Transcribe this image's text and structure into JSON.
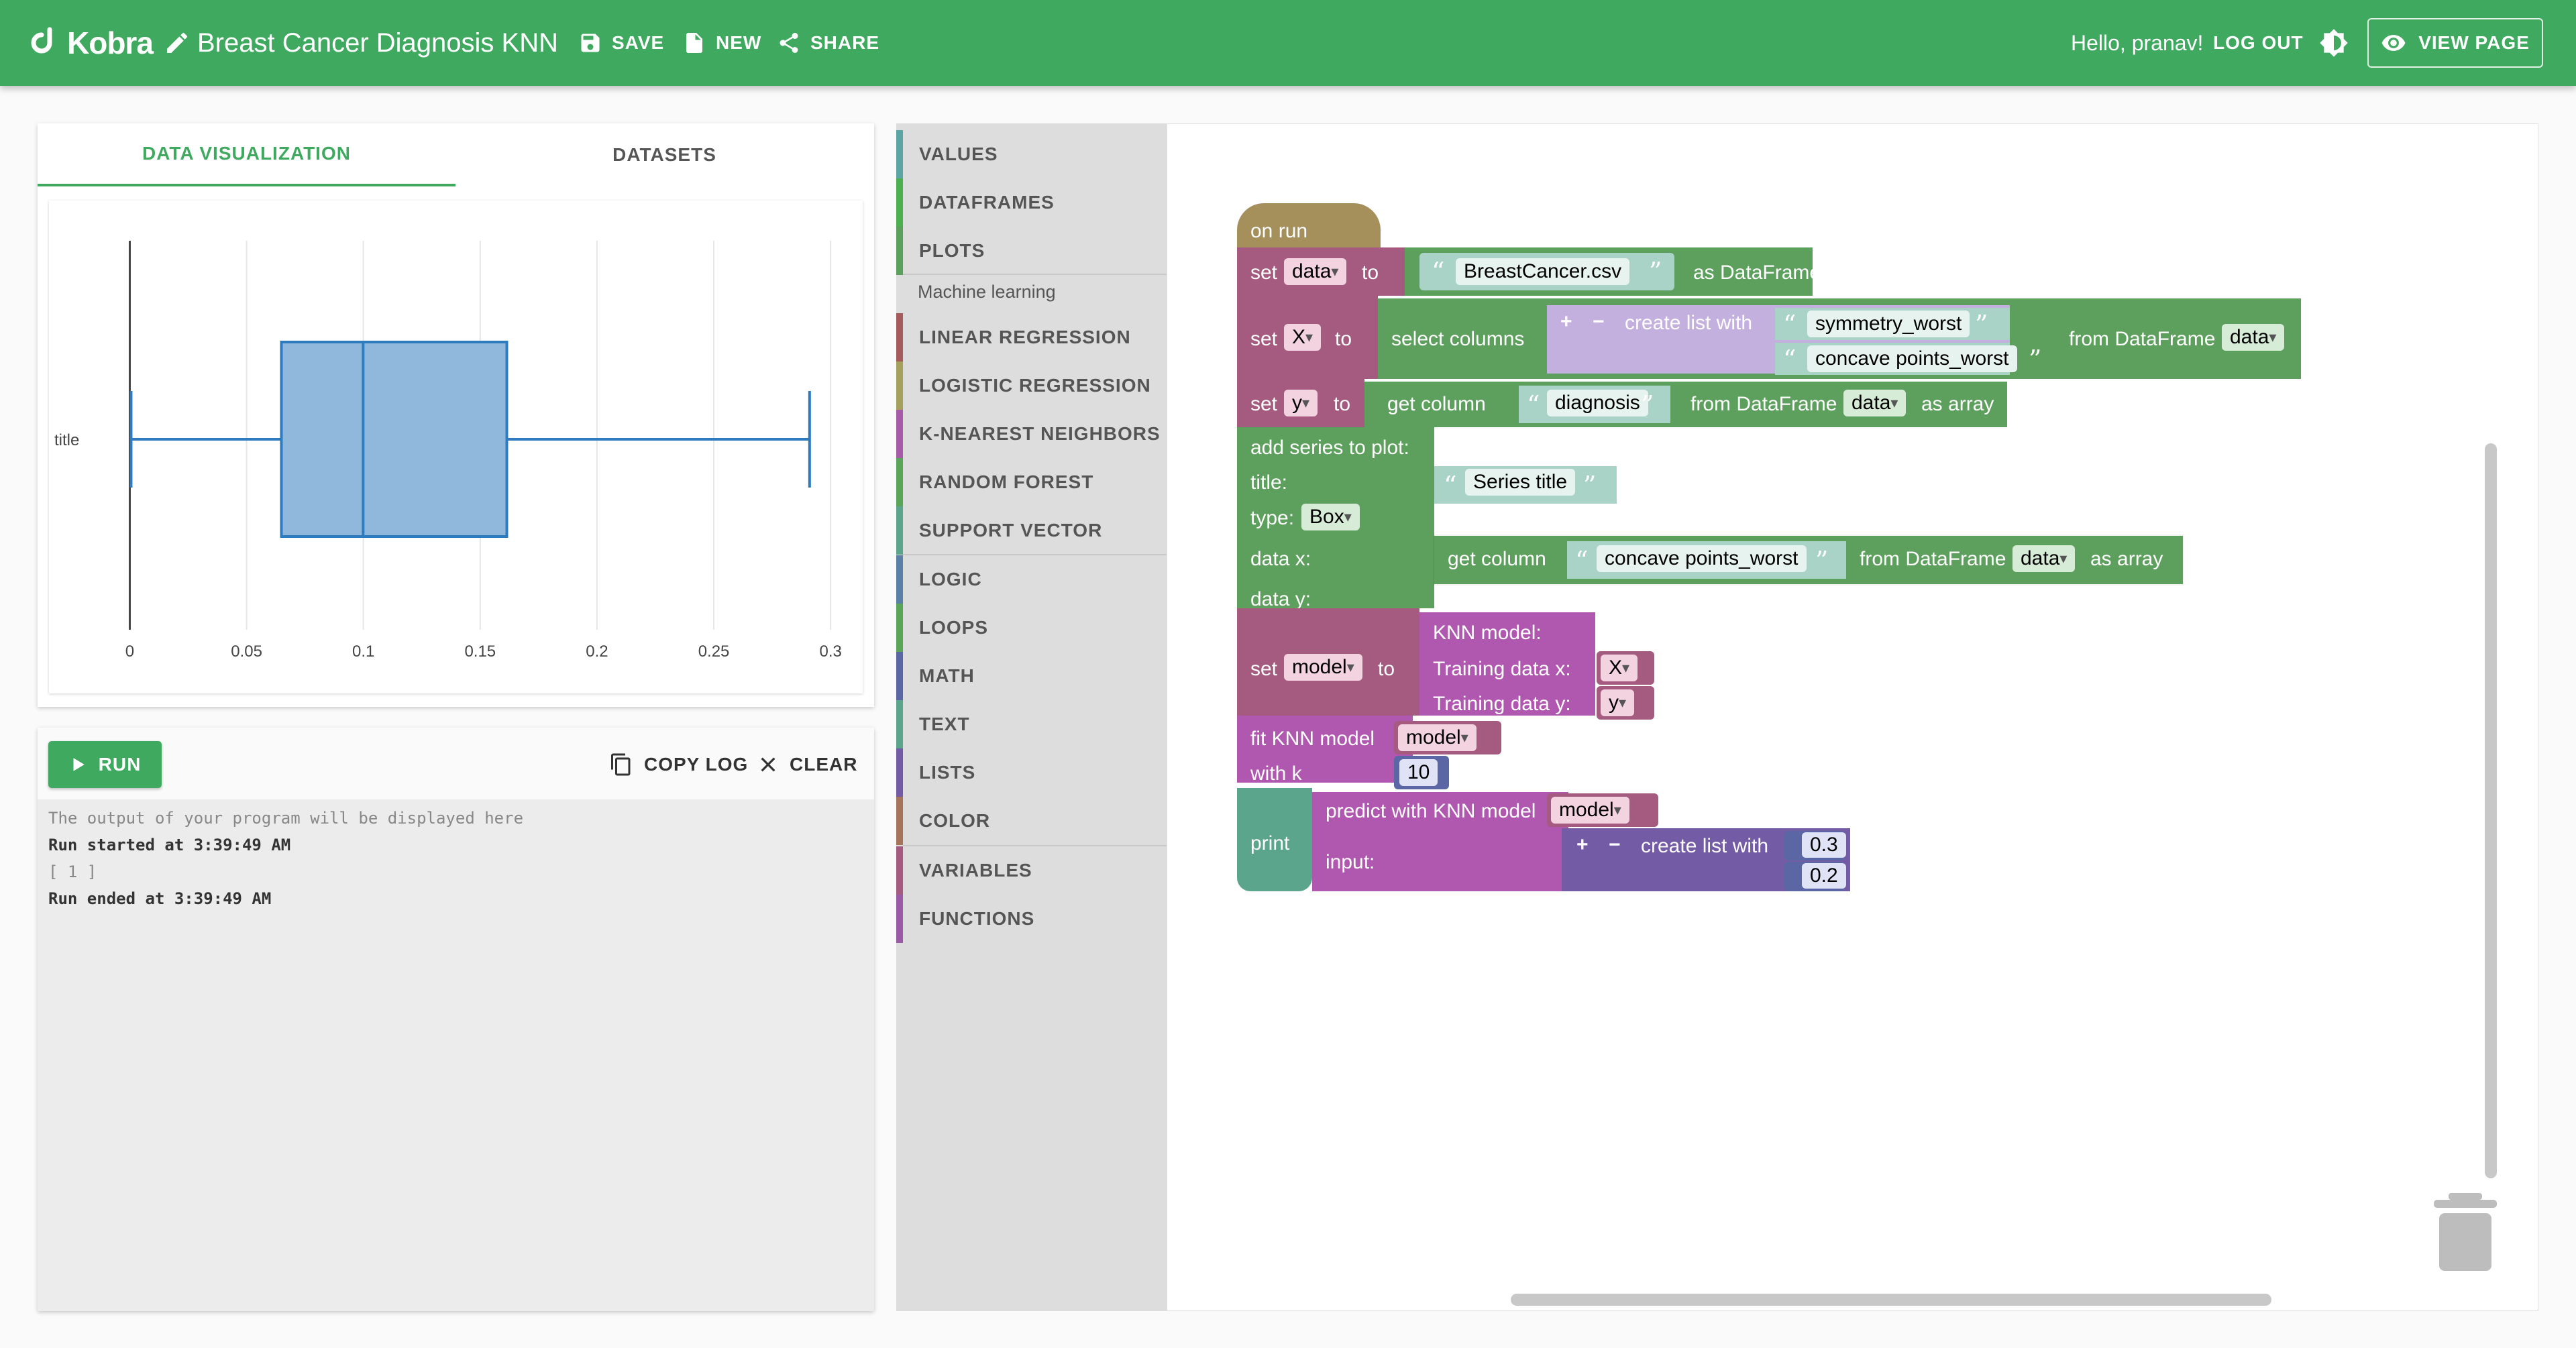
{
  "header": {
    "logo_text": "Kobra",
    "project_title": "Breast Cancer Diagnosis KNN",
    "save_label": "SAVE",
    "new_label": "NEW",
    "share_label": "SHARE",
    "greeting": "Hello, pranav!",
    "logout_label": "LOG OUT",
    "view_page_label": "VIEW PAGE",
    "brand_color": "#3fa95f"
  },
  "left_panel": {
    "tabs": [
      "DATA VISUALIZATION",
      "DATASETS"
    ],
    "active_tab": "DATA VISUALIZATION"
  },
  "chart_data": {
    "type": "box",
    "orientation": "horizontal",
    "category_label": "title",
    "x_ticks": [
      "0",
      "0.05",
      "0.1",
      "0.15",
      "0.2",
      "0.25",
      "0.3"
    ],
    "xlim": [
      -0.003,
      0.31
    ],
    "whisker_low": 0.0,
    "q1": 0.0649,
    "median": 0.0999,
    "q3": 0.1614,
    "whisker_high": 0.291,
    "grid": true,
    "box_color": "#8fb8dc",
    "line_color": "#2f7bbf"
  },
  "console": {
    "run_label": "RUN",
    "copy_log_label": "COPY LOG",
    "clear_label": "CLEAR",
    "lines": [
      {
        "text": "The output of your program will be displayed here",
        "style": "hint"
      },
      {
        "text": "Run started at 3:39:49 AM",
        "style": "bold"
      },
      {
        "text": "[ 1 ]",
        "style": "hint"
      },
      {
        "text": "Run ended at 3:39:49 AM",
        "style": "bold"
      }
    ]
  },
  "toolbox": {
    "categories": [
      {
        "label": "VALUES",
        "color": "#5ba5a5"
      },
      {
        "label": "DATAFRAMES",
        "color": "#4caf50"
      },
      {
        "label": "PLOTS",
        "color": "#5da05d"
      },
      {
        "label": "LINEAR REGRESSION",
        "color": "#a55b5b"
      },
      {
        "label": "LOGISTIC REGRESSION",
        "color": "#a5a05b"
      },
      {
        "label": "K-NEAREST NEIGHBORS",
        "color": "#a55ba5"
      },
      {
        "label": "RANDOM FOREST",
        "color": "#5ba55b"
      },
      {
        "label": "SUPPORT VECTOR",
        "color": "#5ba58c"
      },
      {
        "label": "LOGIC",
        "color": "#5b80a5"
      },
      {
        "label": "LOOPS",
        "color": "#5ba55b"
      },
      {
        "label": "MATH",
        "color": "#5b67a5"
      },
      {
        "label": "TEXT",
        "color": "#5ba58c"
      },
      {
        "label": "LISTS",
        "color": "#745ba5"
      },
      {
        "label": "COLOR",
        "color": "#a5745b"
      },
      {
        "label": "VARIABLES",
        "color": "#a55b80"
      },
      {
        "label": "FUNCTIONS",
        "color": "#995ba5"
      }
    ],
    "ml_heading": "Machine learning"
  },
  "blocks": {
    "on_run": "on run",
    "set": "set",
    "to": "to",
    "var_data": "data",
    "var_x": "X",
    "var_y": "y",
    "var_model": "model",
    "csv_name": "BreastCancer.csv",
    "as_dataframe": "as DataFrame",
    "select_columns": "select columns",
    "create_list_with": "create list with",
    "col1": "symmetry_worst",
    "col2": "concave points_worst",
    "from_dataframe": "from DataFrame",
    "get_column": "get column",
    "diagnosis": "diagnosis",
    "as_array": "as array",
    "add_series": "add series to plot:",
    "title_label": "title:",
    "series_title": "Series title",
    "type_label": "type:",
    "type_value": "Box",
    "data_x": "data x:",
    "data_y": "data y:",
    "knn_model": "KNN model:",
    "training_x": "Training data x:",
    "training_y": "Training data y:",
    "fit_knn": "fit KNN model",
    "with_k": "with k",
    "k_value": "10",
    "print": "print",
    "predict_knn": "predict with KNN model",
    "input": "input:",
    "val1": "0.3",
    "val2": "0.2",
    "plus": "+",
    "minus": "−"
  }
}
